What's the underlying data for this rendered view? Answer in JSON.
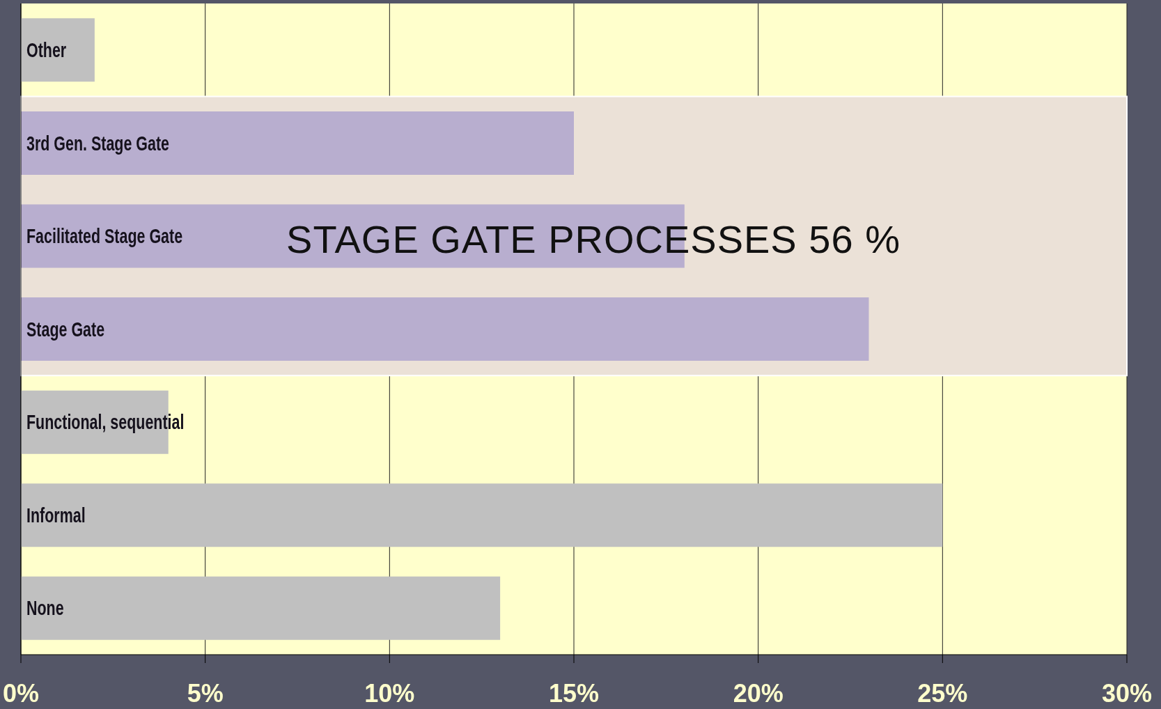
{
  "chart_data": {
    "type": "bar",
    "orientation": "horizontal",
    "categories": [
      "Other",
      "3rd Gen. Stage Gate",
      "Facilitated Stage Gate",
      "Stage Gate",
      "Functional, sequential",
      "Informal",
      "None"
    ],
    "values": [
      2,
      15,
      18,
      23,
      4,
      25,
      13
    ],
    "colors": [
      "#c0c0c0",
      "#b8aecf",
      "#b8aecf",
      "#b8aecf",
      "#c0c0c0",
      "#c0c0c0",
      "#c0c0c0"
    ],
    "xlim": [
      0,
      30
    ],
    "xticks": [
      {
        "value": 0,
        "label": "0%"
      },
      {
        "value": 5,
        "label": "5%"
      },
      {
        "value": 10,
        "label": "10%"
      },
      {
        "value": 15,
        "label": "15%"
      },
      {
        "value": 20,
        "label": "20%"
      },
      {
        "value": 25,
        "label": "25%"
      },
      {
        "value": 30,
        "label": "30%"
      }
    ],
    "grid": "x",
    "bands": [
      {
        "axis": "y",
        "from": "3rd Gen. Stage Gate",
        "to": "Stage Gate",
        "label": "STAGE GATE PROCESSES 56 %",
        "color": "#ebe1d7"
      }
    ]
  }
}
